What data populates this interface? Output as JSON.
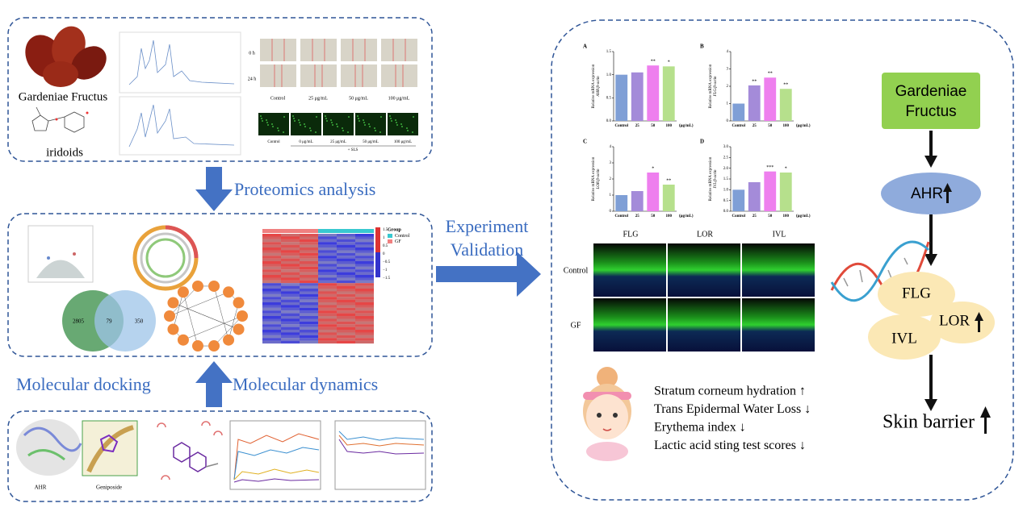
{
  "top_panel": {
    "fruit_label": "Gardeniae Fructus",
    "compound_label": "iridoids",
    "wound_times": [
      "0 h",
      "24 h"
    ],
    "wound_groups": [
      "Control",
      "25 μg/mL",
      "50 μg/mL",
      "100 μg/mL"
    ],
    "fluorescence_groups": [
      "Control",
      "0 μg/mL",
      "25 μg/mL",
      "50 μg/mL",
      "100 μg/mL"
    ],
    "fluorescence_treatment": "+ SLS"
  },
  "step_1": "Proteomics analysis",
  "middle_panel": {
    "venn_values": [
      "2805",
      "79",
      "350"
    ],
    "heatmap_legend_title": "Group",
    "heatmap_groups": [
      "Control",
      "GF"
    ],
    "heatmap_scale": [
      "1.5",
      "1",
      "0.5",
      "0",
      "−0.5",
      "−1",
      "−1.5"
    ]
  },
  "step_2a": "Molecular docking",
  "step_2b": "Molecular dynamics",
  "bottom_panel": {
    "protein_label": "AHR",
    "ligand_label": "Geniposide"
  },
  "step_3": [
    "Experiment",
    "Validation"
  ],
  "bar_charts": [
    {
      "label": "A",
      "y_title": "Relative mRNA expression",
      "y_subtitle": "AHR/β-actin",
      "categories": [
        "Control",
        "25",
        "50",
        "100"
      ],
      "unit": "(μg/mL)",
      "values": [
        1.0,
        1.05,
        1.2,
        1.18
      ],
      "significance": [
        null,
        null,
        "**",
        "*"
      ],
      "colors": [
        "#7f9fd6",
        "#a48bd9",
        "#ee7fee",
        "#b6e08c"
      ],
      "ylim": [
        0,
        1.5
      ],
      "yticks": [
        {
          "value": 0,
          "label": "0.0"
        },
        {
          "value": 0.5,
          "label": "0.5"
        },
        {
          "value": 1,
          "label": "1.0"
        },
        {
          "value": 1.5,
          "label": "1.5"
        }
      ]
    },
    {
      "label": "B",
      "y_title": "Relative mRNA expression",
      "y_subtitle": "FLG/β-actin",
      "categories": [
        "Control",
        "25",
        "50",
        "100"
      ],
      "unit": "(μg/mL)",
      "values": [
        1.0,
        2.05,
        2.5,
        1.85
      ],
      "significance": [
        null,
        "**",
        "**",
        "**"
      ],
      "colors": [
        "#7f9fd6",
        "#a48bd9",
        "#ee7fee",
        "#b6e08c"
      ],
      "ylim": [
        0,
        4
      ],
      "yticks": [
        0,
        1,
        2,
        3,
        4
      ]
    },
    {
      "label": "C",
      "y_title": "Relative mRNA expression",
      "y_subtitle": "LOR/β-actin",
      "categories": [
        "Control",
        "25",
        "50",
        "100"
      ],
      "unit": "(μg/mL)",
      "values": [
        1.0,
        1.25,
        2.4,
        1.65
      ],
      "significance": [
        null,
        null,
        "*",
        "**"
      ],
      "colors": [
        "#7f9fd6",
        "#a48bd9",
        "#ee7fee",
        "#b6e08c"
      ],
      "ylim": [
        0,
        4
      ],
      "yticks": [
        0,
        1,
        2,
        3,
        4
      ]
    },
    {
      "label": "D",
      "y_title": "Relative mRNA expression",
      "y_subtitle": "IVL/β-actin",
      "categories": [
        "Control",
        "25",
        "50",
        "100"
      ],
      "unit": "(μg/mL)",
      "values": [
        1.0,
        1.35,
        1.85,
        1.8
      ],
      "significance": [
        null,
        null,
        "***",
        "*"
      ],
      "colors": [
        "#7f9fd6",
        "#a48bd9",
        "#ee7fee",
        "#b6e08c"
      ],
      "ylim": [
        0,
        3
      ],
      "yticks": [
        {
          "value": 0,
          "label": "0.0"
        },
        {
          "value": 0.5,
          "label": "0.5"
        },
        {
          "value": 1,
          "label": "1.0"
        },
        {
          "value": 1.5,
          "label": "1.5"
        },
        {
          "value": 2,
          "label": "2.0"
        },
        {
          "value": 2.5,
          "label": "2.5"
        },
        {
          "value": 3,
          "label": "3.0"
        }
      ]
    }
  ],
  "microscopy": {
    "markers": [
      "FLG",
      "LOR",
      "IVL"
    ],
    "groups": [
      "Control",
      "GF"
    ]
  },
  "outcomes": [
    "Stratum corneum hydration ↑",
    "Trans Epidermal Water Loss ↓",
    "Erythema index  ↓",
    "Lactic acid sting test scores ↓"
  ],
  "pathway": {
    "source": [
      "Gardeniae",
      "Fructus"
    ],
    "receptor": "AHR",
    "proteins": [
      "FLG",
      "LOR",
      "IVL"
    ],
    "result": "Skin barrier"
  }
}
